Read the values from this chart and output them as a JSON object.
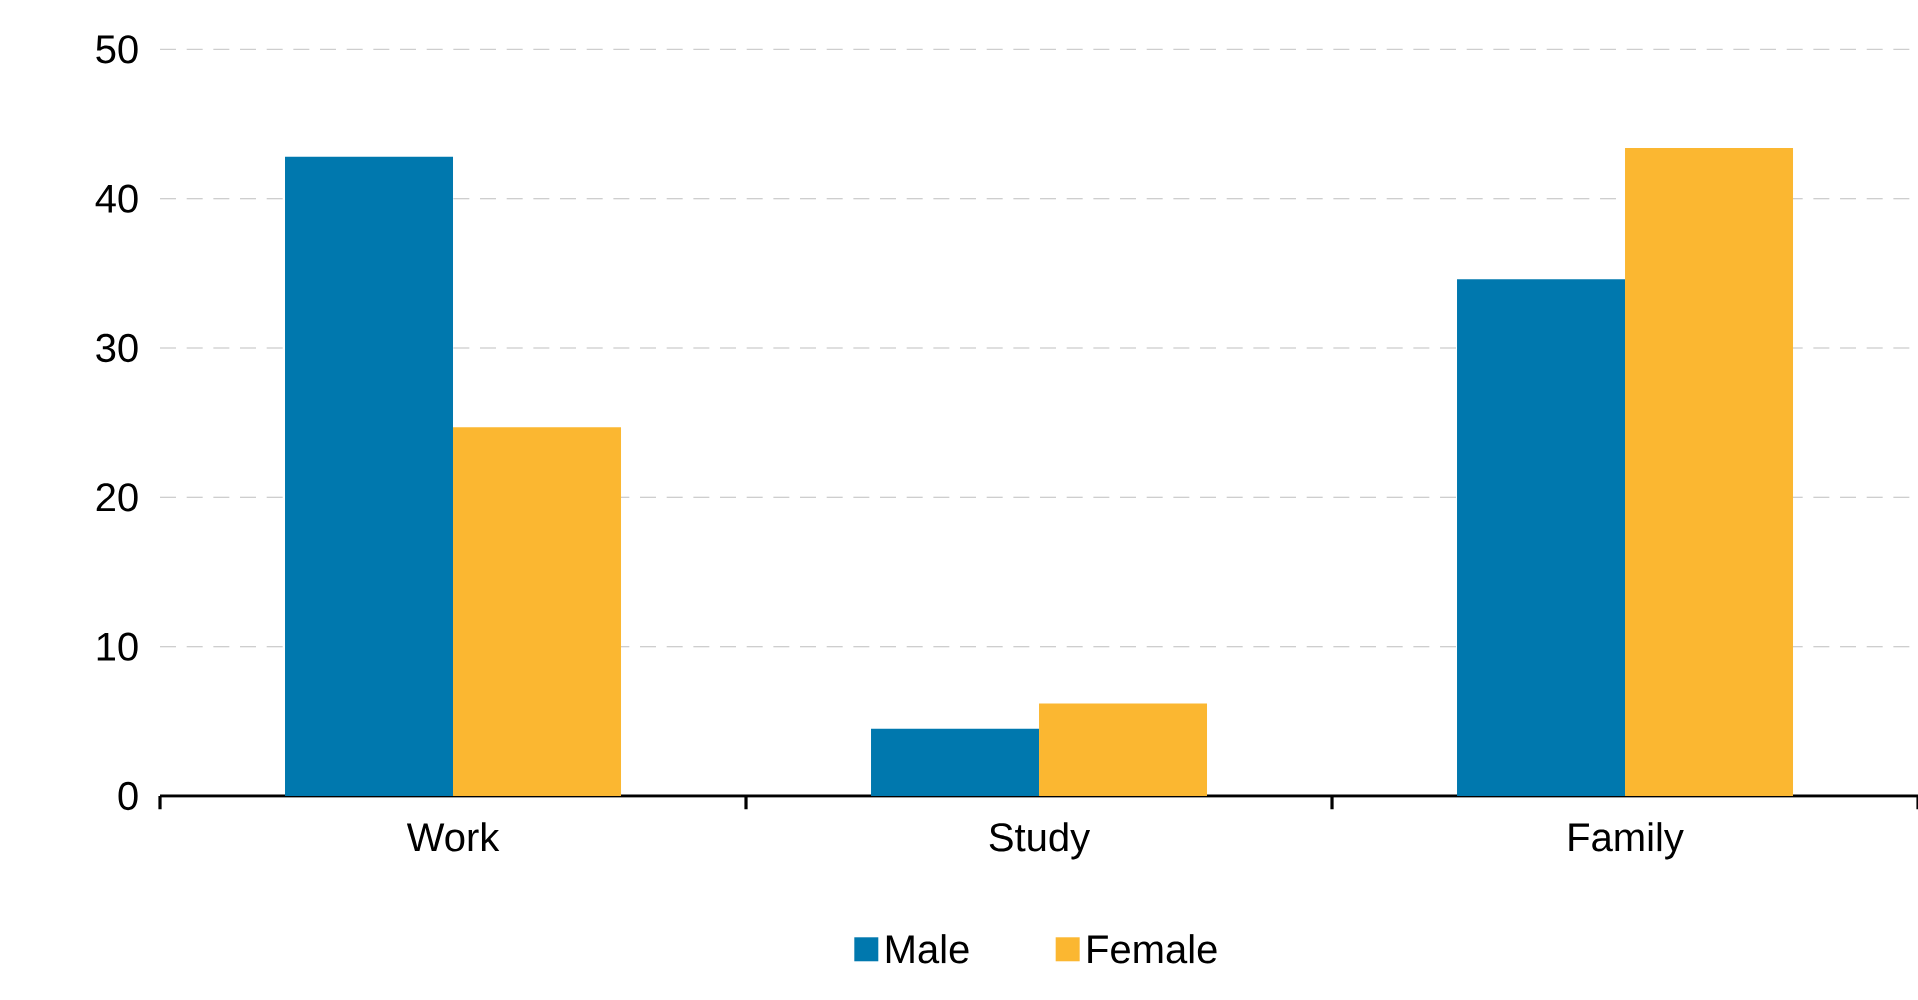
{
  "chart_data": {
    "type": "bar",
    "categories": [
      "Work",
      "Study",
      "Family"
    ],
    "series": [
      {
        "name": "Male",
        "color": "#0078ae",
        "values": [
          42.8,
          4.5,
          34.6
        ]
      },
      {
        "name": "Female",
        "color": "#fbb731",
        "values": [
          24.7,
          6.2,
          43.4
        ]
      }
    ],
    "ylim": [
      0,
      50
    ],
    "yticks": [
      0,
      10,
      20,
      30,
      40,
      50
    ],
    "grid": "y",
    "legend": "bottom"
  }
}
